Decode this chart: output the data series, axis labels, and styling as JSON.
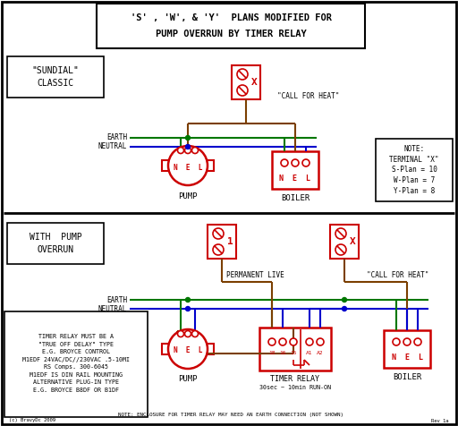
{
  "bg_color": "#ffffff",
  "border_color": "#000000",
  "red": "#cc0000",
  "brown": "#7B3F00",
  "green": "#007700",
  "blue": "#0000cc",
  "title_line1": "'S' , 'W', & 'Y'  PLANS MODIFIED FOR",
  "title_line2": "PUMP OVERRUN BY TIMER RELAY",
  "label_sundial": "\"SUNDIAL\"\nCLASSIC",
  "label_with_pump": "WITH  PUMP\nOVERRUN",
  "note_text": "NOTE:\nTERMINAL \"X\"\nS-Plan = 10\nW-Plan = 7\nY-Plan = 8",
  "relay_note": "TIMER RELAY MUST BE A\n\"TRUE OFF DELAY\" TYPE\nE.G. BROYCE CONTROL\nM1EDF 24VAC/DC//230VAC .5-10MI\nRS Comps. 300-6045\nM1EDF IS DIN RAIL MOUNTING\nALTERNATIVE PLUG-IN TYPE\nE.G. BROYCE B8DF OR B1DF",
  "timer_note": "NOTE: ENCLOSURE FOR TIMER RELAY MAY NEED AN EARTH CONNECTION (NOT SHOWN)",
  "rev_text": "Rev 1a",
  "copyright": "(c) BravyDc 2009"
}
